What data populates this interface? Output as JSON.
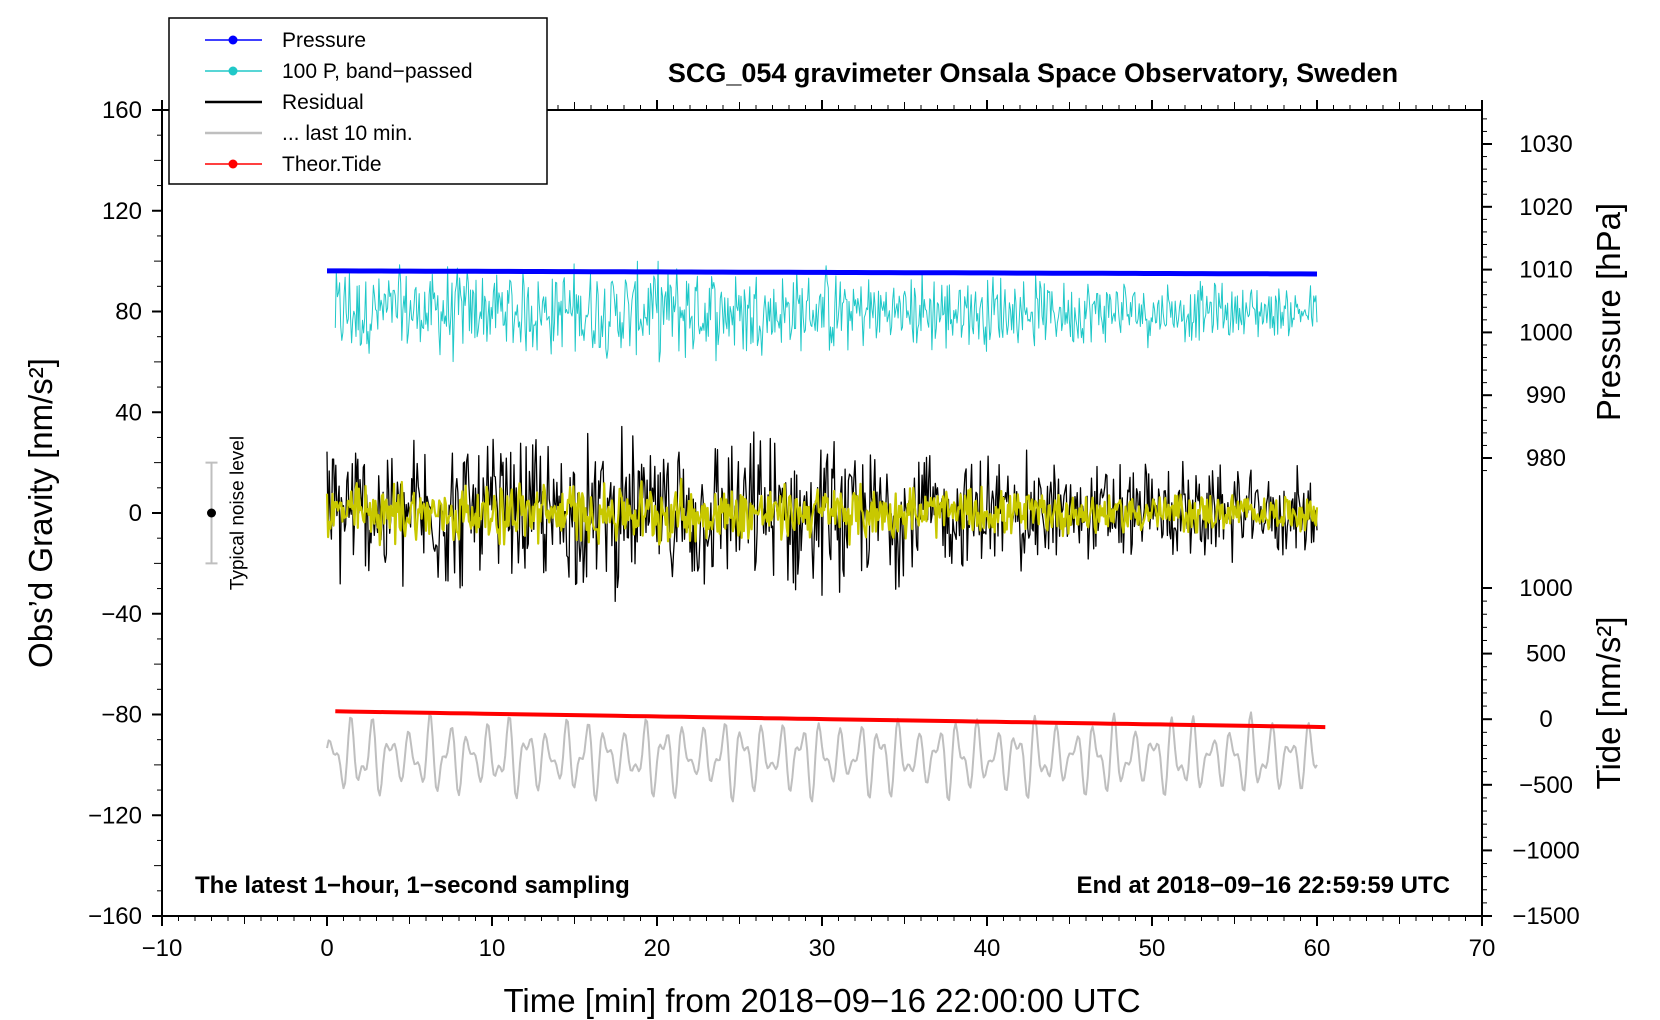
{
  "chart_data": {
    "type": "line",
    "title": "SCG_054 gravimeter Onsala Space Observatory, Sweden",
    "xlabel": "Time [min] from 2018−09−16 22:00:00 UTC",
    "ylabel_left": "Obs’d Gravity [nm/s²]",
    "ylabel_right_top": "Pressure [hPa]",
    "ylabel_right_bottom": "Tide [nm/s²]",
    "xlim": [
      -10,
      70
    ],
    "ylim": [
      -160,
      160
    ],
    "pressure_axis_range": [
      970,
      1035
    ],
    "tide_axis_range": [
      -1500,
      1500
    ],
    "x_ticks": [
      "−10",
      "0",
      "10",
      "20",
      "30",
      "40",
      "50",
      "60",
      "70"
    ],
    "x_tick_values": [
      -10,
      0,
      10,
      20,
      30,
      40,
      50,
      60,
      70
    ],
    "y_ticks": [
      "−160",
      "−120",
      "−80",
      "−40",
      "0",
      "40",
      "80",
      "120",
      "160"
    ],
    "y_tick_values": [
      -160,
      -120,
      -80,
      -40,
      0,
      40,
      80,
      120,
      160
    ],
    "pressure_ticks": [
      "980",
      "990",
      "1000",
      "1010",
      "1020",
      "1030"
    ],
    "pressure_tick_values": [
      980,
      990,
      1000,
      1010,
      1020,
      1030
    ],
    "tide_ticks": [
      "−1500",
      "−1000",
      "−500",
      "0",
      "500",
      "1000"
    ],
    "tide_tick_values": [
      -1500,
      -1000,
      -500,
      0,
      500,
      1000
    ],
    "legend": [
      {
        "label": "Pressure",
        "color": "#0000ff",
        "marker": true
      },
      {
        "label": "100 P, band−passed",
        "color": "#20c8c8",
        "marker": true
      },
      {
        "label": "Residual",
        "color": "#000000",
        "marker": false
      },
      {
        "label": "... last 10 min.",
        "color": "#bfbfbf",
        "marker": false
      },
      {
        "label": "Theor.Tide",
        "color": "#ff0000",
        "marker": true
      }
    ],
    "series": [
      {
        "name": "Pressure",
        "axis": "pressure",
        "color": "#0000ff",
        "x_range": [
          0,
          60
        ],
        "start": 1009.8,
        "end": 1009.3
      },
      {
        "name": "100 P, band−passed",
        "axis": "gravity",
        "color": "#20c8c8",
        "x_range": [
          0,
          60
        ],
        "center": 80,
        "amplitude": 18
      },
      {
        "name": "Residual",
        "axis": "gravity",
        "color": "#000000",
        "x_range": [
          0,
          60
        ],
        "center": 0,
        "amplitude": 30
      },
      {
        "name": "Residual filtered",
        "axis": "gravity",
        "color": "#c8c800",
        "x_range": [
          0,
          60
        ],
        "center": 0,
        "amplitude": 12
      },
      {
        "name": "... last 10 min.",
        "axis": "gravity",
        "color": "#bfbfbf",
        "x_range": [
          0,
          60
        ],
        "center": -97,
        "amplitude": 14
      },
      {
        "name": "Theor.Tide",
        "axis": "tide",
        "color": "#ff0000",
        "x_range": [
          0.5,
          60.5
        ],
        "start": 60,
        "end": -60
      }
    ],
    "noise_bar": {
      "label": "Typical noise level",
      "x": -7,
      "center": 0,
      "low": -20,
      "high": 20
    },
    "annotations": {
      "left": "The latest 1−hour, 1−second sampling",
      "right": "End at 2018−09−16 22:59:59 UTC"
    }
  }
}
